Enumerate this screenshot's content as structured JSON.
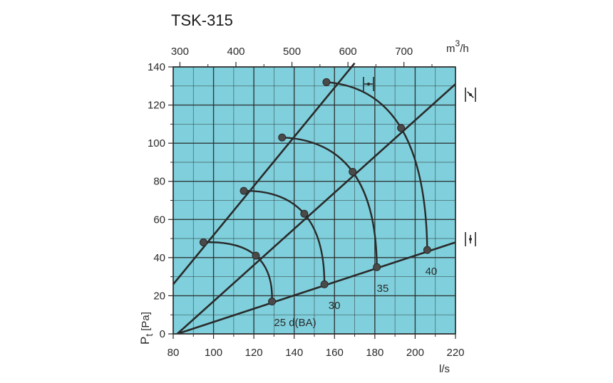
{
  "chart_data": {
    "type": "line",
    "title": "TSK-315",
    "xlabel": "l/s",
    "ylabel": "Pt [Pa]",
    "ylabel_main": "P",
    "ylabel_sub": "t",
    "ylabel_unit": "[Pa]",
    "top_axis_label": "m3/h",
    "top_axis_label_base": "m",
    "top_axis_label_sup": "3",
    "top_axis_label_tail": "/h",
    "xlim": [
      80,
      220
    ],
    "ylim": [
      0,
      140
    ],
    "x_ticks": [
      80,
      100,
      120,
      140,
      160,
      180,
      200,
      220
    ],
    "y_ticks": [
      0,
      20,
      40,
      60,
      80,
      100,
      120,
      140
    ],
    "top_ticks": [
      300,
      400,
      500,
      600,
      700
    ],
    "grid": true,
    "background_color": "#7fd0dc",
    "line_color": "#2a2a2a",
    "damper_lines": [
      {
        "name": "closed",
        "x": [
          80,
          170
        ],
        "y": [
          26,
          142
        ]
      },
      {
        "name": "half",
        "x": [
          82,
          220
        ],
        "y": [
          0,
          131
        ]
      },
      {
        "name": "open",
        "x": [
          82,
          220
        ],
        "y": [
          0,
          48
        ]
      }
    ],
    "sound_curves": [
      {
        "label": "25 d(BA)",
        "points": [
          [
            95,
            48
          ],
          [
            121,
            41
          ],
          [
            129,
            17
          ]
        ]
      },
      {
        "label": "30",
        "points": [
          [
            115,
            75
          ],
          [
            145,
            63
          ],
          [
            155,
            26
          ]
        ]
      },
      {
        "label": "35",
        "points": [
          [
            134,
            103
          ],
          [
            169,
            85
          ],
          [
            181,
            35
          ]
        ]
      },
      {
        "label": "40",
        "points": [
          [
            156,
            132
          ],
          [
            193,
            108
          ],
          [
            206,
            44
          ]
        ]
      }
    ],
    "markers": [
      [
        95,
        48
      ],
      [
        121,
        41
      ],
      [
        129,
        17
      ],
      [
        115,
        75
      ],
      [
        145,
        63
      ],
      [
        155,
        26
      ],
      [
        134,
        103
      ],
      [
        169,
        85
      ],
      [
        181,
        35
      ],
      [
        156,
        132
      ],
      [
        193,
        108
      ],
      [
        206,
        44
      ]
    ],
    "damper_icons": [
      "fully-open-damper-icon",
      "half-open-damper-icon",
      "closed-damper-icon"
    ]
  }
}
